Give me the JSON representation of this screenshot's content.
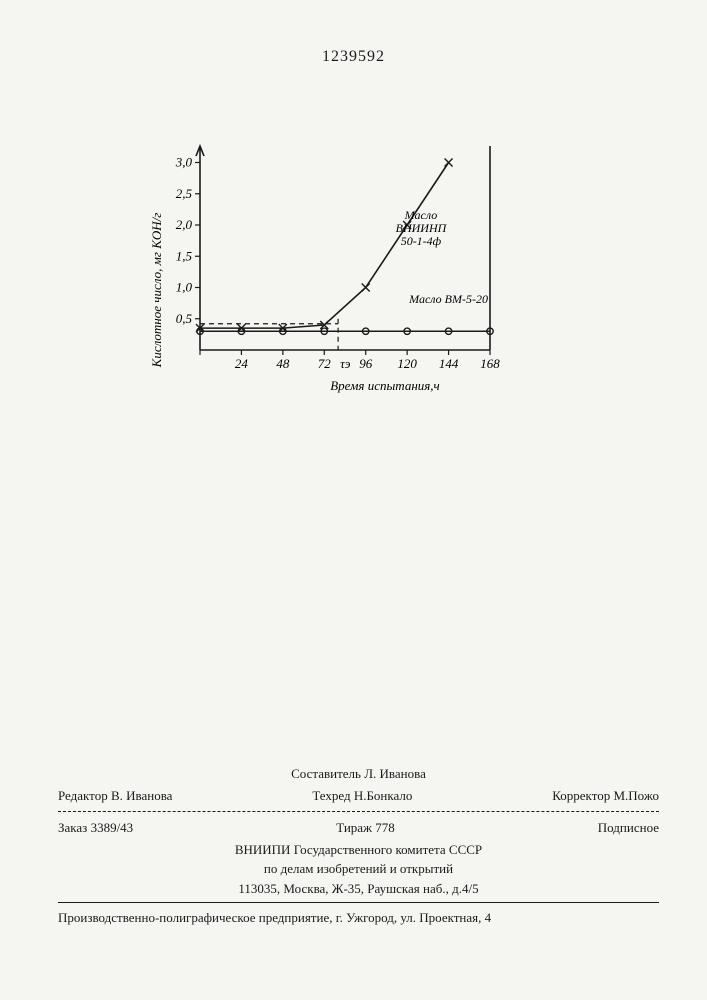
{
  "document_number": "1239592",
  "chart": {
    "type": "line",
    "x_axis": {
      "label": "Время испытания,ч",
      "ticks": [
        0,
        24,
        48,
        72,
        96,
        120,
        144,
        168
      ],
      "tick_labels": [
        "",
        "24",
        "48",
        "72",
        "96",
        "120",
        "144",
        "168"
      ],
      "xlim": [
        0,
        168
      ]
    },
    "y_axis": {
      "label": "Кислотное число, мг KOH/г",
      "ticks": [
        0.5,
        1.0,
        1.5,
        2.0,
        2.5,
        3.0
      ],
      "tick_labels": [
        "0,5",
        "1,0",
        "1,5",
        "2,0",
        "2,5",
        "3,0"
      ],
      "ylim": [
        0,
        3.2
      ]
    },
    "tau_marker": {
      "x": 80,
      "label": "τэ"
    },
    "series": [
      {
        "name": "Масло ВНИИНП 50-1-4ф",
        "marker": "x",
        "label_lines": [
          "Масло",
          "ВНИИНП",
          "50-1-4ф"
        ],
        "label_pos": {
          "x": 128,
          "y": 2.1
        },
        "points": [
          {
            "x": 0,
            "y": 0.35
          },
          {
            "x": 24,
            "y": 0.35
          },
          {
            "x": 48,
            "y": 0.35
          },
          {
            "x": 72,
            "y": 0.4
          },
          {
            "x": 96,
            "y": 1.0
          },
          {
            "x": 120,
            "y": 2.0
          },
          {
            "x": 144,
            "y": 3.0
          }
        ]
      },
      {
        "name": "Масло ВМ-5-20",
        "marker": "o",
        "label_lines": [
          "Масло ВМ-5-20"
        ],
        "label_pos": {
          "x": 144,
          "y": 0.75
        },
        "points": [
          {
            "x": 0,
            "y": 0.3
          },
          {
            "x": 24,
            "y": 0.3
          },
          {
            "x": 48,
            "y": 0.3
          },
          {
            "x": 72,
            "y": 0.3
          },
          {
            "x": 96,
            "y": 0.3
          },
          {
            "x": 120,
            "y": 0.3
          },
          {
            "x": 144,
            "y": 0.3
          },
          {
            "x": 168,
            "y": 0.3
          }
        ]
      }
    ],
    "colors": {
      "axis": "#1a1a1a",
      "line": "#1a1a1a",
      "background": "#f5f5f2"
    },
    "line_width": 1.6
  },
  "footer": {
    "compiler": "Составитель Л. Иванова",
    "editor_label": "Редактор",
    "editor": "В. Иванова",
    "tekhred_label": "Техред",
    "tekhred": "Н.Бонкало",
    "corrector_label": "Корректор",
    "corrector": "М.Пожо",
    "order_label": "Заказ",
    "order": "3389/43",
    "tirazh_label": "Тираж",
    "tirazh": "778",
    "subscription": "Подписное",
    "org_line1": "ВНИИПИ Государственного комитета СССР",
    "org_line2": "по делам изобретений и открытий",
    "address": "113035, Москва, Ж-35, Раушская наб., д.4/5"
  },
  "imprint": "Производственно-полиграфическое предприятие, г. Ужгород, ул. Проектная, 4"
}
